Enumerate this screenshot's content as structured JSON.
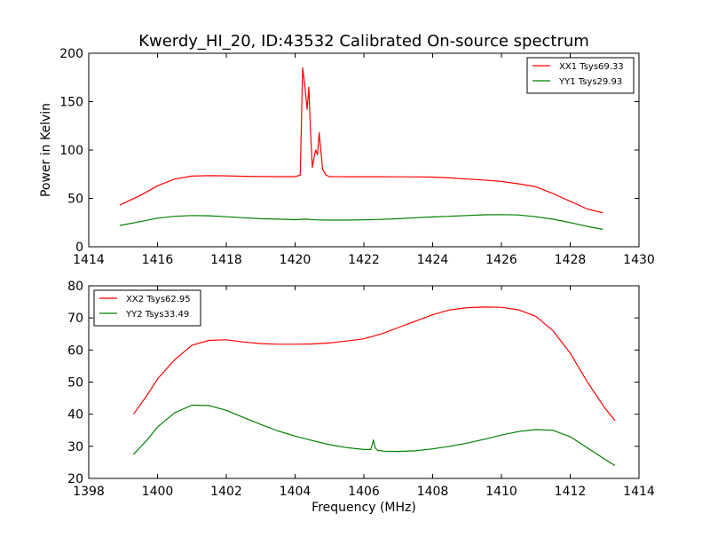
{
  "figure": {
    "title": "Kwerdy_HI_20, ID:43532 Calibrated On-source spectrum"
  },
  "chart_data": [
    {
      "type": "line",
      "title": "Kwerdy_HI_20, ID:43532 Calibrated On-source spectrum",
      "xlabel": "",
      "ylabel": "Power in Kelvin",
      "xlim": [
        1414,
        1430
      ],
      "ylim": [
        0,
        200
      ],
      "x_ticks": [
        1414,
        1416,
        1418,
        1420,
        1422,
        1424,
        1426,
        1428,
        1430
      ],
      "y_ticks": [
        0,
        50,
        100,
        150,
        200
      ],
      "grid": false,
      "legend_position": "top-right",
      "series": [
        {
          "name": "XX1 Tsys69.33",
          "color": "#ff0000",
          "x": [
            1414.9,
            1415.5,
            1416.0,
            1416.5,
            1417.0,
            1417.5,
            1418.0,
            1418.5,
            1419.0,
            1419.5,
            1420.0,
            1420.15,
            1420.22,
            1420.28,
            1420.35,
            1420.4,
            1420.45,
            1420.5,
            1420.55,
            1420.6,
            1420.65,
            1420.7,
            1420.8,
            1420.9,
            1421.0,
            1421.5,
            1422.0,
            1422.5,
            1423.0,
            1423.5,
            1424.0,
            1424.5,
            1425.0,
            1425.5,
            1426.0,
            1426.5,
            1427.0,
            1427.5,
            1428.0,
            1428.5,
            1428.95
          ],
          "values": [
            43,
            53,
            63,
            70,
            73,
            73.5,
            73.3,
            72.8,
            72.6,
            72.5,
            72.5,
            74,
            185,
            168,
            142,
            165,
            118,
            82,
            92,
            100,
            95,
            118,
            80,
            74,
            72.5,
            72.4,
            72.4,
            72.4,
            72.3,
            72.2,
            72,
            71.2,
            70,
            69,
            67.5,
            65,
            62,
            55,
            47,
            39,
            35
          ]
        },
        {
          "name": "YY1 Tsys29.93",
          "color": "#008000",
          "x": [
            1414.9,
            1415.5,
            1416.0,
            1416.5,
            1417.0,
            1417.5,
            1418.0,
            1418.5,
            1419.0,
            1419.5,
            1420.0,
            1420.3,
            1420.6,
            1421.0,
            1421.5,
            1422.0,
            1422.5,
            1423.0,
            1423.5,
            1424.0,
            1424.5,
            1425.0,
            1425.5,
            1426.0,
            1426.5,
            1427.0,
            1427.5,
            1428.0,
            1428.5,
            1428.95
          ],
          "values": [
            22,
            26,
            29.5,
            31.5,
            32.3,
            32,
            31,
            30,
            29,
            28.5,
            28,
            28.5,
            27.8,
            27.5,
            27.5,
            27.8,
            28.3,
            29,
            30,
            30.8,
            31.5,
            32.3,
            33,
            33.2,
            32.8,
            31,
            28.5,
            25,
            21,
            18
          ]
        }
      ]
    },
    {
      "type": "line",
      "title": "",
      "xlabel": "Frequency (MHz)",
      "ylabel": "",
      "xlim": [
        1398,
        1414
      ],
      "ylim": [
        20,
        80
      ],
      "x_ticks": [
        1398,
        1400,
        1402,
        1404,
        1406,
        1408,
        1410,
        1412,
        1414
      ],
      "y_ticks": [
        20,
        30,
        40,
        50,
        60,
        70,
        80
      ],
      "grid": false,
      "legend_position": "top-left",
      "series": [
        {
          "name": "XX2 Tsys62.95",
          "color": "#ff0000",
          "x": [
            1399.3,
            1399.7,
            1400.0,
            1400.5,
            1401.0,
            1401.5,
            1402.0,
            1402.5,
            1403.0,
            1403.5,
            1404.0,
            1404.5,
            1405.0,
            1405.5,
            1406.0,
            1406.5,
            1407.0,
            1407.5,
            1408.0,
            1408.5,
            1409.0,
            1409.5,
            1410.0,
            1410.5,
            1411.0,
            1411.5,
            1412.0,
            1412.5,
            1413.0,
            1413.3
          ],
          "values": [
            40,
            46,
            51,
            57,
            61.5,
            63,
            63.2,
            62.5,
            62,
            61.8,
            61.8,
            61.9,
            62.2,
            62.8,
            63.5,
            65,
            67,
            69,
            71,
            72.5,
            73.2,
            73.4,
            73.3,
            72.5,
            70.5,
            66,
            59,
            50,
            42,
            38
          ]
        },
        {
          "name": "YY2 Tsys33.49",
          "color": "#008000",
          "x": [
            1399.3,
            1399.7,
            1400.0,
            1400.5,
            1401.0,
            1401.5,
            1402.0,
            1402.5,
            1403.0,
            1403.5,
            1404.0,
            1404.5,
            1405.0,
            1405.5,
            1406.0,
            1406.2,
            1406.28,
            1406.33,
            1406.4,
            1406.6,
            1407.0,
            1407.5,
            1408.0,
            1408.5,
            1409.0,
            1409.5,
            1410.0,
            1410.5,
            1411.0,
            1411.5,
            1412.0,
            1412.5,
            1413.0,
            1413.3
          ],
          "values": [
            27.5,
            32,
            36,
            40.5,
            42.8,
            42.7,
            41.2,
            39,
            36.8,
            34.8,
            33.2,
            31.8,
            30.5,
            29.6,
            29,
            29,
            32,
            29.5,
            28.7,
            28.5,
            28.4,
            28.6,
            29.2,
            30,
            31,
            32.2,
            33.5,
            34.6,
            35.2,
            35,
            33,
            29.5,
            26,
            24
          ]
        }
      ]
    }
  ]
}
